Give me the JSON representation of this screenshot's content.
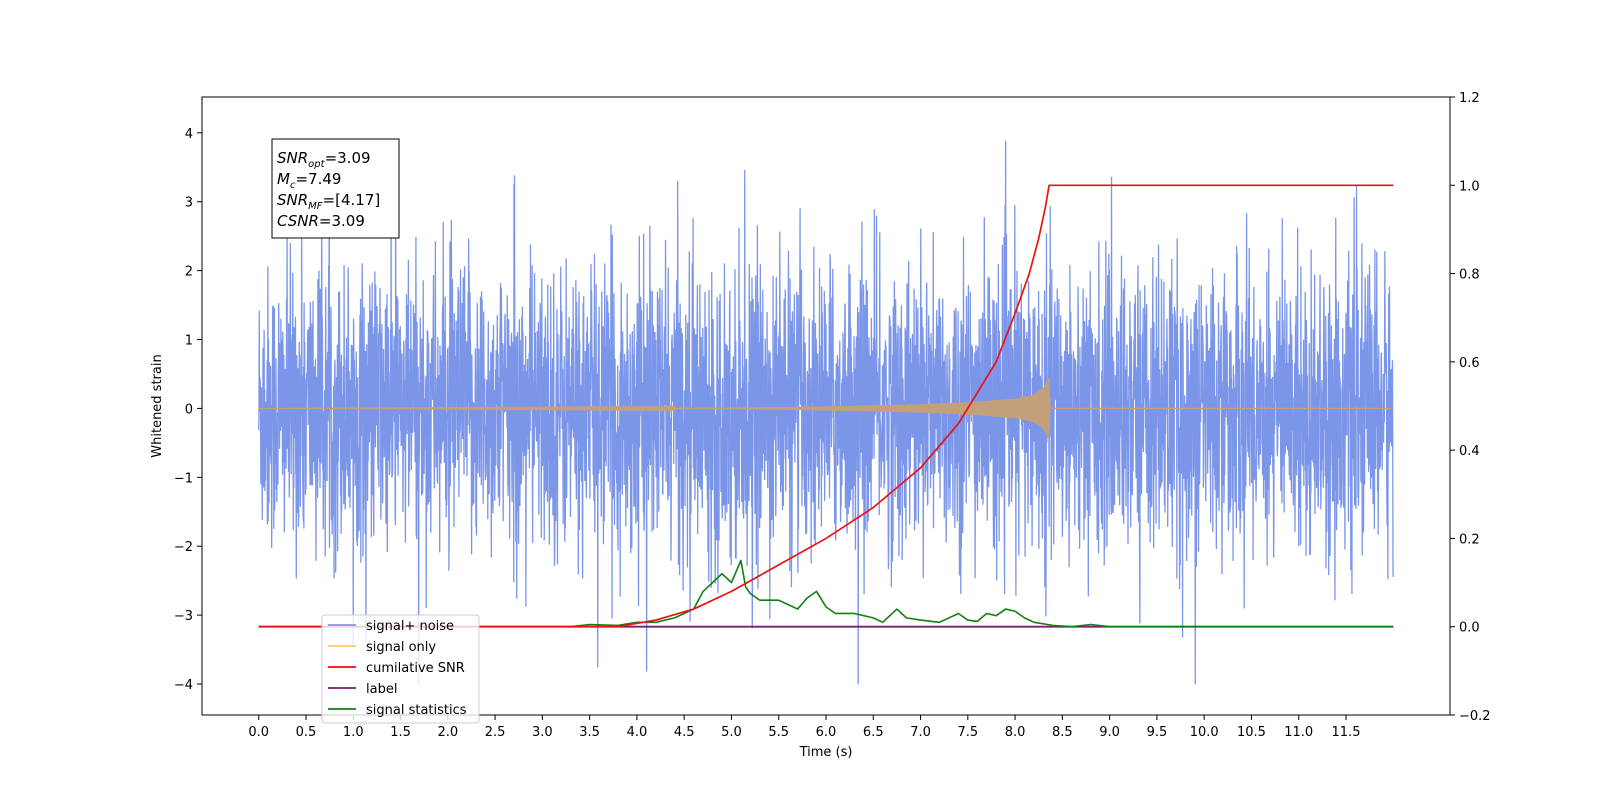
{
  "chart_data": {
    "type": "line",
    "title": "",
    "xlabel": "Time (s)",
    "ylabel": "Whitened strain",
    "ylabel_right": "",
    "xlim": [
      -0.6,
      12.6
    ],
    "ylim": [
      -4.45,
      4.52
    ],
    "ylim_right": [
      -0.2,
      1.2
    ],
    "x_ticks": [
      "0.0",
      "0.5",
      "1.0",
      "1.5",
      "2.0",
      "2.5",
      "3.0",
      "3.5",
      "4.0",
      "4.5",
      "5.0",
      "5.5",
      "6.0",
      "6.5",
      "7.0",
      "7.5",
      "8.0",
      "8.5",
      "9.0",
      "9.5",
      "10.0",
      "10.5",
      "11.0",
      "11.5"
    ],
    "y_ticks_left": [
      "−4",
      "−3",
      "−2",
      "−1",
      "0",
      "1",
      "2",
      "3",
      "4"
    ],
    "y_ticks_right": [
      "−0.2",
      "0.0",
      "0.2",
      "0.4",
      "0.6",
      "0.8",
      "1.0",
      "1.2"
    ],
    "grid": false,
    "legend": {
      "placement": "lower-left",
      "entries": [
        {
          "name": "signal+ noise",
          "color": "#7b96e8"
        },
        {
          "name": "signal only",
          "color": "#ffc866"
        },
        {
          "name": "cumilative SNR",
          "color": "#ee1111"
        },
        {
          "name": "label",
          "color": "#7a1a7a"
        },
        {
          "name": "signal statistics",
          "color": "#118011"
        }
      ]
    },
    "annotation": {
      "lines": [
        {
          "base": "SNR",
          "sub": "opt",
          "rest": "=3.09"
        },
        {
          "base": "M",
          "sub": "c",
          "rest": "=7.49"
        },
        {
          "base": "SNR",
          "sub": "MF",
          "rest": "=[4.17]"
        },
        {
          "base": "CSNR",
          "sub": "",
          "rest": "=3.09"
        }
      ]
    },
    "series": [
      {
        "name": "signal+ noise",
        "axis": "left",
        "color": "#7b96e8",
        "x_range": [
          0.0,
          12.0
        ],
        "description_values": {
          "typical_amplitude": 1.3,
          "max": 4.1,
          "min": -4.0
        }
      },
      {
        "name": "signal only",
        "axis": "left",
        "color": "#c4a07a",
        "x_range": [
          0.0,
          12.0
        ],
        "envelope": {
          "x": [
            0.0,
            5.0,
            6.0,
            7.0,
            7.5,
            8.0,
            8.2,
            8.3,
            8.36,
            8.37,
            12.0
          ],
          "amp": [
            0.0,
            0.01,
            0.03,
            0.06,
            0.09,
            0.14,
            0.2,
            0.3,
            0.45,
            0.0,
            0.0
          ]
        }
      },
      {
        "name": "cumilative SNR",
        "axis": "right",
        "color": "#ee1111",
        "x": [
          0.0,
          3.8,
          4.2,
          4.6,
          5.0,
          5.5,
          6.0,
          6.5,
          7.0,
          7.4,
          7.8,
          8.0,
          8.15,
          8.25,
          8.32,
          8.36,
          8.37,
          12.0
        ],
        "values": [
          0.0,
          0.0,
          0.015,
          0.04,
          0.08,
          0.14,
          0.2,
          0.27,
          0.36,
          0.46,
          0.6,
          0.71,
          0.8,
          0.88,
          0.95,
          1.0,
          1.0,
          1.0
        ]
      },
      {
        "name": "label",
        "axis": "right",
        "color": "#7a1a7a",
        "x": [
          0.0,
          12.0
        ],
        "values": [
          0.0,
          0.0
        ]
      },
      {
        "name": "signal statistics",
        "axis": "right",
        "color": "#118011",
        "x": [
          0.0,
          3.3,
          3.5,
          3.8,
          4.0,
          4.2,
          4.4,
          4.6,
          4.7,
          4.8,
          4.9,
          5.0,
          5.1,
          5.15,
          5.2,
          5.3,
          5.5,
          5.6,
          5.7,
          5.8,
          5.9,
          6.0,
          6.1,
          6.3,
          6.5,
          6.6,
          6.75,
          6.85,
          7.0,
          7.2,
          7.4,
          7.5,
          7.6,
          7.7,
          7.8,
          7.9,
          8.0,
          8.1,
          8.2,
          8.4,
          8.6,
          8.8,
          9.0,
          9.5,
          12.0
        ],
        "values": [
          0.0,
          0.0,
          0.005,
          0.003,
          0.01,
          0.01,
          0.02,
          0.04,
          0.08,
          0.1,
          0.12,
          0.1,
          0.15,
          0.09,
          0.075,
          0.06,
          0.06,
          0.05,
          0.04,
          0.065,
          0.08,
          0.045,
          0.03,
          0.03,
          0.02,
          0.01,
          0.04,
          0.02,
          0.015,
          0.01,
          0.03,
          0.015,
          0.012,
          0.03,
          0.025,
          0.04,
          0.035,
          0.02,
          0.01,
          0.003,
          0.0,
          0.005,
          0.0,
          0.0,
          0.0
        ]
      }
    ]
  }
}
